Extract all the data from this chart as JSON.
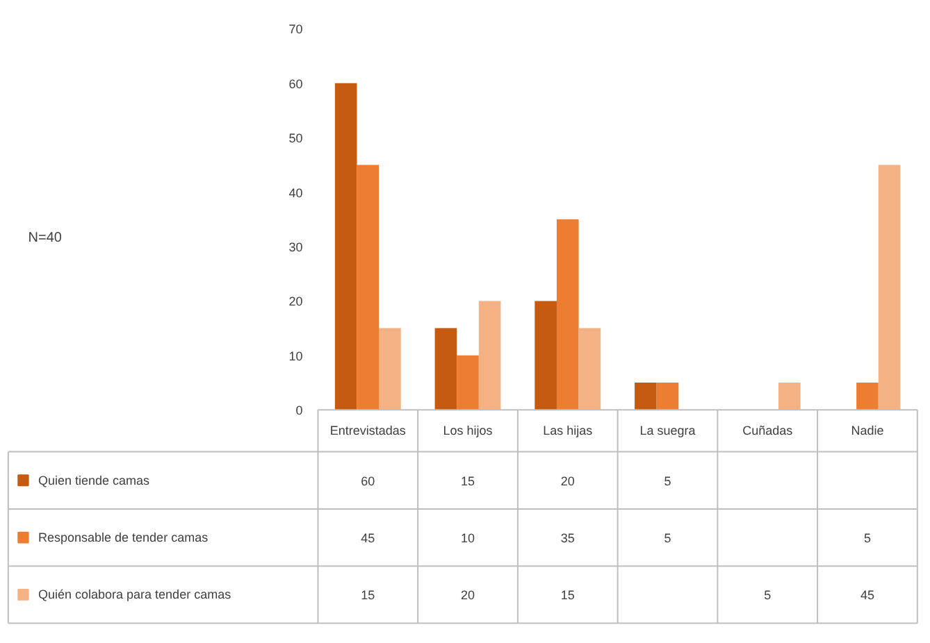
{
  "chart_data": {
    "type": "bar",
    "categories": [
      "Entrevistadas",
      "Los hijos",
      "Las hijas",
      "La suegra",
      "Cuñadas",
      "Nadie"
    ],
    "series": [
      {
        "name": "Quien tiende camas",
        "color": "#c55a11",
        "values": [
          60,
          15,
          20,
          5,
          null,
          null
        ],
        "value_labels": [
          "60",
          "15",
          "20",
          "5",
          null,
          null
        ]
      },
      {
        "name": "Responsable de tender camas",
        "color": "#ed7d31",
        "values": [
          45,
          10,
          35,
          5,
          null,
          5
        ],
        "value_labels": [
          "45",
          "10",
          "35",
          "5",
          null,
          "5"
        ]
      },
      {
        "name": "Quién colabora para tender camas",
        "color": "#f4b183",
        "values": [
          15,
          20,
          15,
          null,
          5,
          45
        ],
        "value_labels": [
          "15",
          "20",
          "15",
          null,
          "5",
          "45"
        ]
      }
    ],
    "ylim": [
      0,
      70
    ],
    "yticks": [
      0,
      10,
      20,
      30,
      40,
      50,
      60,
      70
    ],
    "grid": false,
    "legend": "bottom",
    "annotations": [
      "N=40"
    ]
  }
}
